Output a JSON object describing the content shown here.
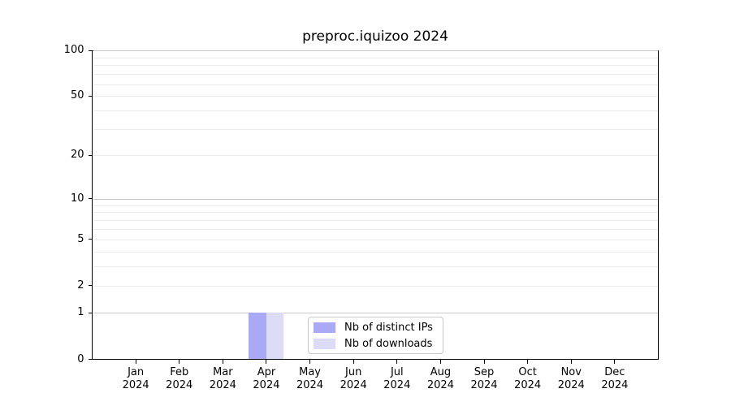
{
  "chart_data": {
    "type": "bar",
    "title": "preproc.iquizoo 2024",
    "categories": [
      "Jan",
      "Feb",
      "Mar",
      "Apr",
      "May",
      "Jun",
      "Jul",
      "Aug",
      "Sep",
      "Oct",
      "Nov",
      "Dec"
    ],
    "category_sublabel": "2024",
    "series": [
      {
        "name": "Nb of distinct IPs",
        "color": "#a9a9f5",
        "values": [
          0,
          0,
          0,
          1,
          0,
          0,
          0,
          0,
          0,
          0,
          0,
          0
        ]
      },
      {
        "name": "Nb of downloads",
        "color": "#dcdcf7",
        "values": [
          0,
          0,
          0,
          1,
          0,
          0,
          0,
          0,
          0,
          0,
          0,
          0
        ]
      }
    ],
    "y_scale": "log1p",
    "ylim": [
      0,
      100
    ],
    "y_tick_labels": [
      0,
      1,
      2,
      5,
      10,
      20,
      50,
      100
    ],
    "y_major_gridlines": [
      1,
      10,
      100
    ],
    "y_minor_gridlines": [
      2,
      3,
      4,
      5,
      6,
      7,
      8,
      9,
      20,
      30,
      40,
      50,
      60,
      70,
      80,
      90
    ],
    "grid": "horizontal-only",
    "legend": {
      "position": "lower-center-inside",
      "items": [
        "Nb of distinct IPs",
        "Nb of downloads"
      ]
    }
  },
  "axis_colors": {
    "spine": "#000000",
    "major_grid": "#c9c9c9",
    "minor_grid": "#ececec"
  }
}
